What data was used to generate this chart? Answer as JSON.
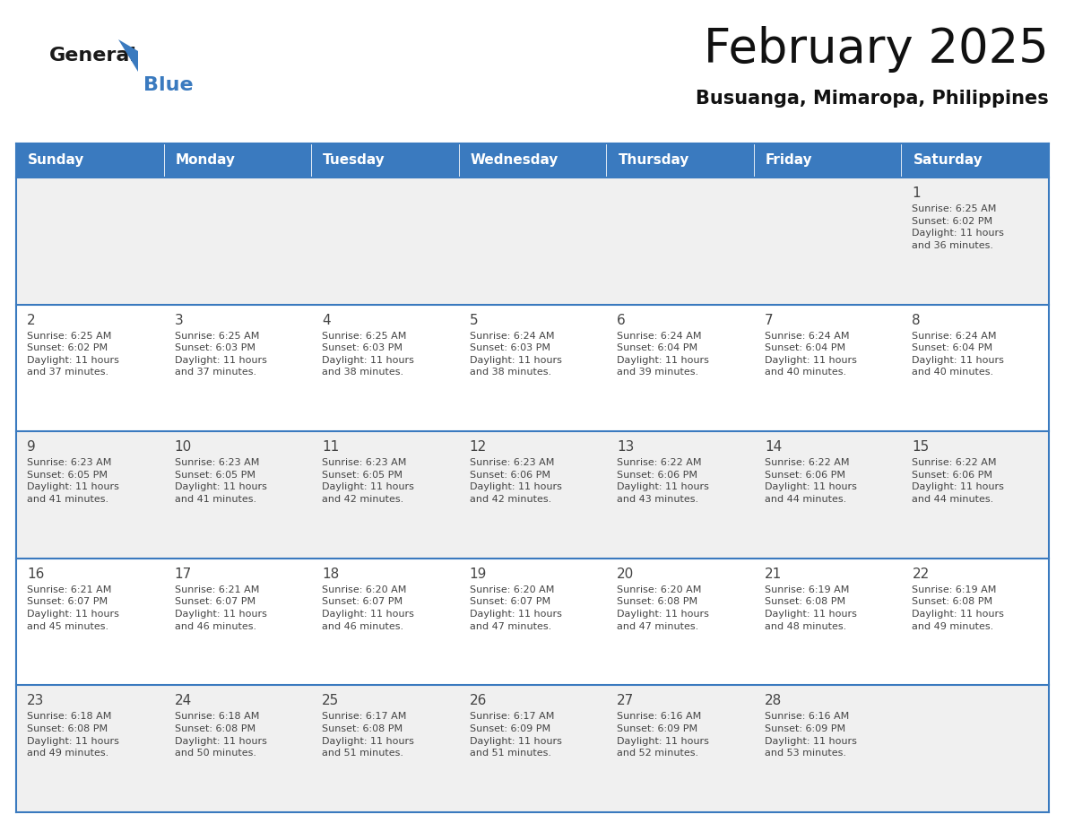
{
  "title": "February 2025",
  "subtitle": "Busuanga, Mimaropa, Philippines",
  "header_color": "#3a7abf",
  "header_text_color": "#ffffff",
  "cell_bg_white": "#ffffff",
  "cell_bg_gray": "#f0f0f0",
  "border_color": "#3a7abf",
  "text_color": "#444444",
  "day_number_color": "#444444",
  "days_of_week": [
    "Sunday",
    "Monday",
    "Tuesday",
    "Wednesday",
    "Thursday",
    "Friday",
    "Saturday"
  ],
  "weeks": [
    [
      {
        "day": null,
        "info": null
      },
      {
        "day": null,
        "info": null
      },
      {
        "day": null,
        "info": null
      },
      {
        "day": null,
        "info": null
      },
      {
        "day": null,
        "info": null
      },
      {
        "day": null,
        "info": null
      },
      {
        "day": 1,
        "info": "Sunrise: 6:25 AM\nSunset: 6:02 PM\nDaylight: 11 hours\nand 36 minutes."
      }
    ],
    [
      {
        "day": 2,
        "info": "Sunrise: 6:25 AM\nSunset: 6:02 PM\nDaylight: 11 hours\nand 37 minutes."
      },
      {
        "day": 3,
        "info": "Sunrise: 6:25 AM\nSunset: 6:03 PM\nDaylight: 11 hours\nand 37 minutes."
      },
      {
        "day": 4,
        "info": "Sunrise: 6:25 AM\nSunset: 6:03 PM\nDaylight: 11 hours\nand 38 minutes."
      },
      {
        "day": 5,
        "info": "Sunrise: 6:24 AM\nSunset: 6:03 PM\nDaylight: 11 hours\nand 38 minutes."
      },
      {
        "day": 6,
        "info": "Sunrise: 6:24 AM\nSunset: 6:04 PM\nDaylight: 11 hours\nand 39 minutes."
      },
      {
        "day": 7,
        "info": "Sunrise: 6:24 AM\nSunset: 6:04 PM\nDaylight: 11 hours\nand 40 minutes."
      },
      {
        "day": 8,
        "info": "Sunrise: 6:24 AM\nSunset: 6:04 PM\nDaylight: 11 hours\nand 40 minutes."
      }
    ],
    [
      {
        "day": 9,
        "info": "Sunrise: 6:23 AM\nSunset: 6:05 PM\nDaylight: 11 hours\nand 41 minutes."
      },
      {
        "day": 10,
        "info": "Sunrise: 6:23 AM\nSunset: 6:05 PM\nDaylight: 11 hours\nand 41 minutes."
      },
      {
        "day": 11,
        "info": "Sunrise: 6:23 AM\nSunset: 6:05 PM\nDaylight: 11 hours\nand 42 minutes."
      },
      {
        "day": 12,
        "info": "Sunrise: 6:23 AM\nSunset: 6:06 PM\nDaylight: 11 hours\nand 42 minutes."
      },
      {
        "day": 13,
        "info": "Sunrise: 6:22 AM\nSunset: 6:06 PM\nDaylight: 11 hours\nand 43 minutes."
      },
      {
        "day": 14,
        "info": "Sunrise: 6:22 AM\nSunset: 6:06 PM\nDaylight: 11 hours\nand 44 minutes."
      },
      {
        "day": 15,
        "info": "Sunrise: 6:22 AM\nSunset: 6:06 PM\nDaylight: 11 hours\nand 44 minutes."
      }
    ],
    [
      {
        "day": 16,
        "info": "Sunrise: 6:21 AM\nSunset: 6:07 PM\nDaylight: 11 hours\nand 45 minutes."
      },
      {
        "day": 17,
        "info": "Sunrise: 6:21 AM\nSunset: 6:07 PM\nDaylight: 11 hours\nand 46 minutes."
      },
      {
        "day": 18,
        "info": "Sunrise: 6:20 AM\nSunset: 6:07 PM\nDaylight: 11 hours\nand 46 minutes."
      },
      {
        "day": 19,
        "info": "Sunrise: 6:20 AM\nSunset: 6:07 PM\nDaylight: 11 hours\nand 47 minutes."
      },
      {
        "day": 20,
        "info": "Sunrise: 6:20 AM\nSunset: 6:08 PM\nDaylight: 11 hours\nand 47 minutes."
      },
      {
        "day": 21,
        "info": "Sunrise: 6:19 AM\nSunset: 6:08 PM\nDaylight: 11 hours\nand 48 minutes."
      },
      {
        "day": 22,
        "info": "Sunrise: 6:19 AM\nSunset: 6:08 PM\nDaylight: 11 hours\nand 49 minutes."
      }
    ],
    [
      {
        "day": 23,
        "info": "Sunrise: 6:18 AM\nSunset: 6:08 PM\nDaylight: 11 hours\nand 49 minutes."
      },
      {
        "day": 24,
        "info": "Sunrise: 6:18 AM\nSunset: 6:08 PM\nDaylight: 11 hours\nand 50 minutes."
      },
      {
        "day": 25,
        "info": "Sunrise: 6:17 AM\nSunset: 6:08 PM\nDaylight: 11 hours\nand 51 minutes."
      },
      {
        "day": 26,
        "info": "Sunrise: 6:17 AM\nSunset: 6:09 PM\nDaylight: 11 hours\nand 51 minutes."
      },
      {
        "day": 27,
        "info": "Sunrise: 6:16 AM\nSunset: 6:09 PM\nDaylight: 11 hours\nand 52 minutes."
      },
      {
        "day": 28,
        "info": "Sunrise: 6:16 AM\nSunset: 6:09 PM\nDaylight: 11 hours\nand 53 minutes."
      },
      {
        "day": null,
        "info": null
      }
    ]
  ],
  "logo_general_color": "#1a1a1a",
  "logo_blue_color": "#3a7abf",
  "title_fontsize": 38,
  "subtitle_fontsize": 15,
  "header_fontsize": 11,
  "day_num_fontsize": 11,
  "info_fontsize": 8
}
